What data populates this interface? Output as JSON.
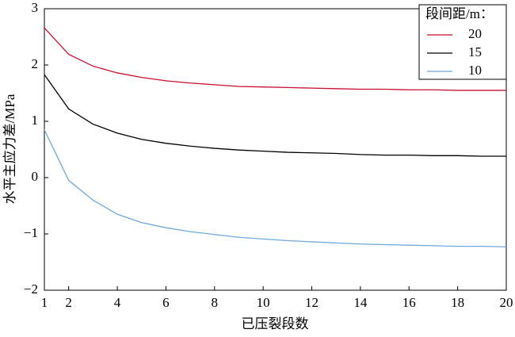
{
  "chart_data": {
    "type": "line",
    "x_label": "已压裂段数",
    "y_label": "水平主应力差/MPa",
    "legend_title": "段间距/m：",
    "x": [
      1,
      2,
      3,
      4,
      5,
      6,
      7,
      8,
      9,
      10,
      11,
      12,
      13,
      14,
      15,
      16,
      17,
      18,
      19,
      20
    ],
    "series": [
      {
        "name": "20",
        "color": "#c8102e",
        "values": [
          2.66,
          2.19,
          1.98,
          1.86,
          1.78,
          1.72,
          1.68,
          1.65,
          1.62,
          1.61,
          1.6,
          1.59,
          1.58,
          1.57,
          1.57,
          1.56,
          1.56,
          1.55,
          1.55,
          1.55
        ]
      },
      {
        "name": "15",
        "color": "#000000",
        "values": [
          1.83,
          1.22,
          0.95,
          0.79,
          0.68,
          0.61,
          0.56,
          0.52,
          0.49,
          0.47,
          0.45,
          0.44,
          0.43,
          0.41,
          0.4,
          0.4,
          0.39,
          0.39,
          0.38,
          0.38
        ]
      },
      {
        "name": "10",
        "color": "#6fa8dc",
        "values": [
          0.85,
          -0.05,
          -0.4,
          -0.65,
          -0.8,
          -0.89,
          -0.96,
          -1.01,
          -1.06,
          -1.09,
          -1.12,
          -1.14,
          -1.16,
          -1.18,
          -1.19,
          -1.2,
          -1.21,
          -1.22,
          -1.22,
          -1.23
        ]
      }
    ],
    "xlim": [
      1,
      20
    ],
    "xticks": [
      1,
      2,
      4,
      6,
      8,
      10,
      12,
      14,
      16,
      18,
      20
    ],
    "ylim": [
      -2,
      3
    ],
    "yticks": [
      {
        "value": -2,
        "label": "−2"
      },
      {
        "value": -1,
        "label": "−1"
      },
      0,
      1,
      2,
      3
    ],
    "legend": "upper right"
  }
}
